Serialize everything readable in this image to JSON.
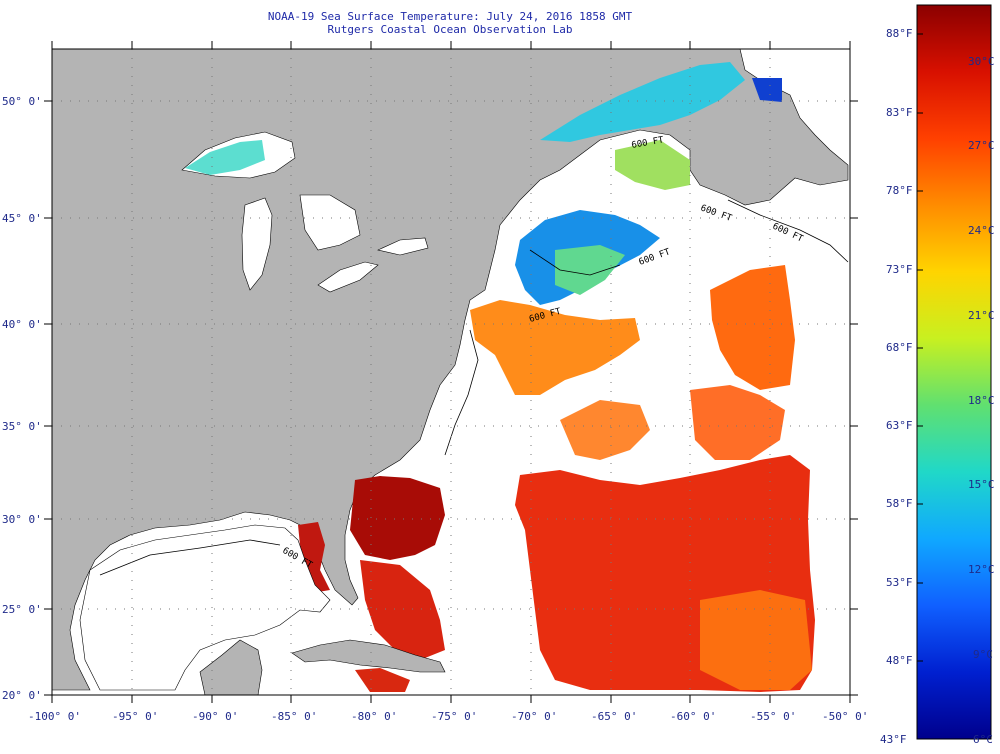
{
  "header": {
    "title": "NOAA-19 Sea Surface Temperature:  July 24, 2016 1858 GMT",
    "subtitle": "Rutgers Coastal Ocean Observation Lab"
  },
  "map": {
    "lon_ticks": [
      "-100° 0'",
      "-95° 0'",
      "-90° 0'",
      "-85° 0'",
      "-80° 0'",
      "-75° 0'",
      "-70° 0'",
      "-65° 0'",
      "-60° 0'",
      "-55° 0'",
      "-50° 0'"
    ],
    "lat_ticks": [
      "50° 0'",
      "45° 0'",
      "40° 0'",
      "35° 0'",
      "30° 0'",
      "25° 0'",
      "20° 0'"
    ],
    "isobath_labels": [
      "600 FT",
      "600 FT",
      "600 FT",
      "600 FT",
      "600 FT",
      "600 FT"
    ],
    "colors": {
      "land": "#b4b4b4",
      "water_no_data": "#ffffff",
      "grid": "#555555"
    }
  },
  "colorbar": {
    "fahrenheit_labels": [
      "88°F",
      "83°F",
      "78°F",
      "73°F",
      "68°F",
      "63°F",
      "58°F",
      "53°F",
      "48°F",
      "43°F"
    ],
    "celsius_labels": [
      "30°C",
      "27°C",
      "24°C",
      "21°C",
      "18°C",
      "15°C",
      "12°C",
      "9°C",
      "6°C"
    ],
    "min_c": 6,
    "max_c": 31,
    "gradient": [
      "#8b0000",
      "#d81000",
      "#ff4000",
      "#ff8c00",
      "#ffd400",
      "#c8f020",
      "#60e070",
      "#20d8c8",
      "#10a8ff",
      "#1060ff",
      "#0020d0",
      "#00008c"
    ]
  }
}
